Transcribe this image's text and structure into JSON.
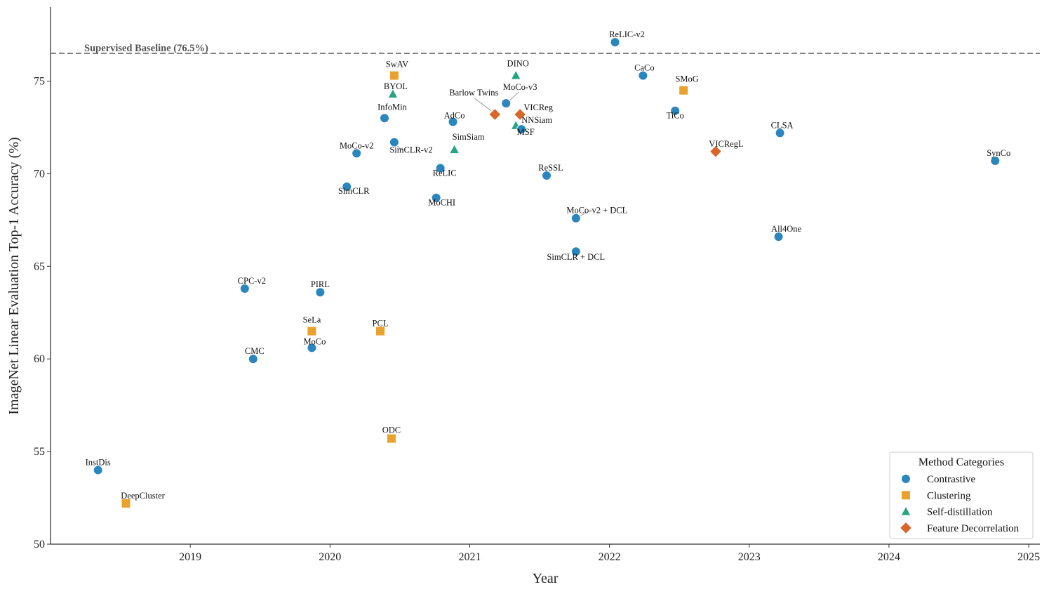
{
  "chart_data": {
    "type": "scatter",
    "xlabel": "Year",
    "ylabel": "ImageNet Linear Evaluation Top-1 Accuracy (%)",
    "xlim": [
      2018.0,
      2025.08
    ],
    "ylim": [
      50,
      79
    ],
    "xticks": [
      2019,
      2020,
      2021,
      2022,
      2023,
      2024,
      2025
    ],
    "yticks": [
      50,
      55,
      60,
      65,
      70,
      75
    ],
    "grid": false,
    "baseline": {
      "value": 76.5,
      "label": "Supervised Baseline (76.5%)"
    },
    "legend": {
      "title": "Method Categories",
      "position": "bottom-right",
      "entries": [
        {
          "name": "Contrastive",
          "marker": "circle",
          "color": "#2a86bd"
        },
        {
          "name": "Clustering",
          "marker": "square",
          "color": "#e8a22d"
        },
        {
          "name": "Self-distillation",
          "marker": "triangle",
          "color": "#27a582"
        },
        {
          "name": "Feature Decorrelation",
          "marker": "diamond",
          "color": "#d9672a"
        }
      ]
    },
    "points": [
      {
        "name": "InstDis",
        "category": "Contrastive",
        "x": 2018.34,
        "y": 54.0
      },
      {
        "name": "DeepCluster",
        "category": "Clustering",
        "x": 2018.54,
        "y": 52.2
      },
      {
        "name": "CPC-v2",
        "category": "Contrastive",
        "x": 2019.39,
        "y": 63.8
      },
      {
        "name": "CMC",
        "category": "Contrastive",
        "x": 2019.45,
        "y": 60.0
      },
      {
        "name": "PIRL",
        "category": "Contrastive",
        "x": 2019.93,
        "y": 63.6
      },
      {
        "name": "SeLa",
        "category": "Clustering",
        "x": 2019.87,
        "y": 61.5
      },
      {
        "name": "MoCo",
        "category": "Contrastive",
        "x": 2019.87,
        "y": 60.6
      },
      {
        "name": "SimCLR",
        "category": "Contrastive",
        "x": 2020.12,
        "y": 69.3
      },
      {
        "name": "MoCo-v2",
        "category": "Contrastive",
        "x": 2020.19,
        "y": 71.1
      },
      {
        "name": "InfoMin",
        "category": "Contrastive",
        "x": 2020.39,
        "y": 73.0
      },
      {
        "name": "PCL",
        "category": "Clustering",
        "x": 2020.36,
        "y": 61.5
      },
      {
        "name": "ODC",
        "category": "Clustering",
        "x": 2020.44,
        "y": 55.7
      },
      {
        "name": "SwAV",
        "category": "Clustering",
        "x": 2020.46,
        "y": 75.3
      },
      {
        "name": "BYOL",
        "category": "Self-distillation",
        "x": 2020.45,
        "y": 74.3
      },
      {
        "name": "SimCLR-v2",
        "category": "Contrastive",
        "x": 2020.46,
        "y": 71.7
      },
      {
        "name": "MoCHI",
        "category": "Contrastive",
        "x": 2020.76,
        "y": 68.7
      },
      {
        "name": "ReLIC",
        "category": "Contrastive",
        "x": 2020.79,
        "y": 70.3
      },
      {
        "name": "AdCo",
        "category": "Contrastive",
        "x": 2020.88,
        "y": 72.8
      },
      {
        "name": "SimSiam",
        "category": "Self-distillation",
        "x": 2020.89,
        "y": 71.3
      },
      {
        "name": "Barlow Twins",
        "category": "Feature Decorrelation",
        "x": 2021.18,
        "y": 73.2
      },
      {
        "name": "MoCo-v3",
        "category": "Contrastive",
        "x": 2021.26,
        "y": 73.8
      },
      {
        "name": "DINO",
        "category": "Self-distillation",
        "x": 2021.33,
        "y": 75.3
      },
      {
        "name": "MSF",
        "category": "Self-distillation",
        "x": 2021.33,
        "y": 72.6
      },
      {
        "name": "VICReg",
        "category": "Feature Decorrelation",
        "x": 2021.36,
        "y": 73.2
      },
      {
        "name": "NNSiam",
        "category": "Contrastive",
        "x": 2021.37,
        "y": 72.4
      },
      {
        "name": "ReSSL",
        "category": "Contrastive",
        "x": 2021.55,
        "y": 69.9
      },
      {
        "name": "MoCo-v2 + DCL",
        "category": "Contrastive",
        "x": 2021.76,
        "y": 67.6
      },
      {
        "name": "SimCLR + DCL",
        "category": "Contrastive",
        "x": 2021.76,
        "y": 65.8
      },
      {
        "name": "ReLIC-v2",
        "category": "Contrastive",
        "x": 2022.04,
        "y": 77.1
      },
      {
        "name": "CaCo",
        "category": "Contrastive",
        "x": 2022.24,
        "y": 75.3
      },
      {
        "name": "TiCo",
        "category": "Contrastive",
        "x": 2022.47,
        "y": 73.4
      },
      {
        "name": "SMoG",
        "category": "Clustering",
        "x": 2022.53,
        "y": 74.5
      },
      {
        "name": "VICRegL",
        "category": "Feature Decorrelation",
        "x": 2022.76,
        "y": 71.2
      },
      {
        "name": "CLSA",
        "category": "Contrastive",
        "x": 2023.22,
        "y": 72.2
      },
      {
        "name": "All4One",
        "category": "Contrastive",
        "x": 2023.21,
        "y": 66.6
      },
      {
        "name": "SynCo",
        "category": "Contrastive",
        "x": 2024.76,
        "y": 70.7
      }
    ]
  }
}
